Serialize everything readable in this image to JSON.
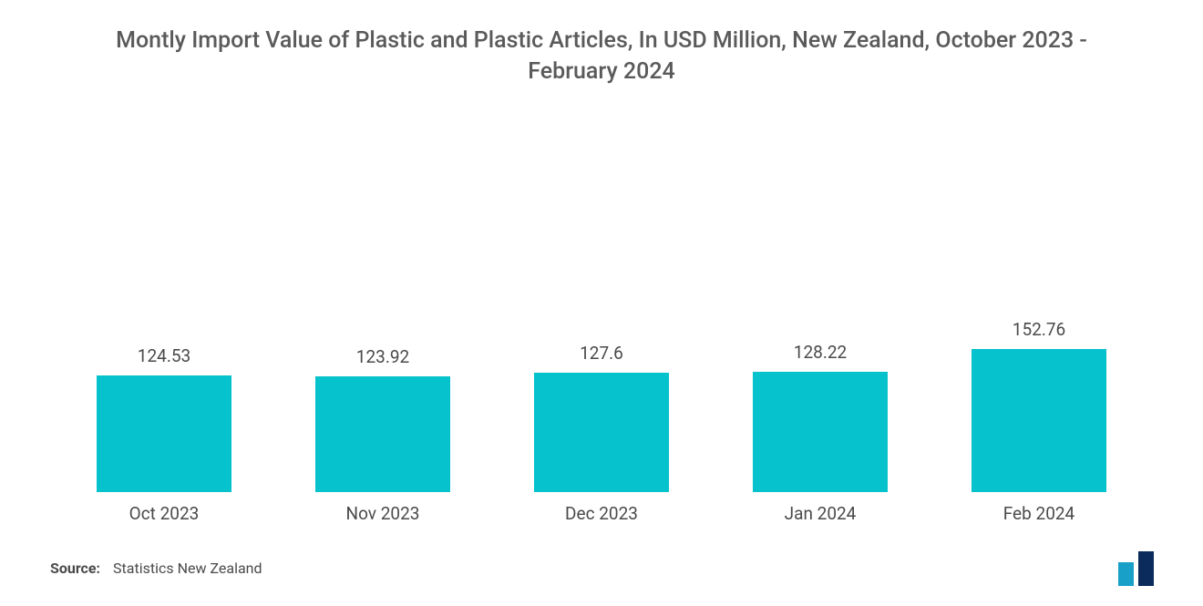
{
  "chart": {
    "type": "bar",
    "title": "Montly Import Value of Plastic and Plastic Articles, In USD Million, New Zealand, October 2023 - February 2024",
    "title_color": "#5a5a5a",
    "title_fontsize": 25,
    "background_color": "#ffffff",
    "bar_color": "#06c2cc",
    "label_color": "#4a4a4a",
    "value_fontsize": 19,
    "category_fontsize": 19,
    "y_max": 380,
    "bar_width_ratio": 0.62,
    "data": [
      {
        "category": "Oct 2023",
        "value": 124.53,
        "label": "124.53"
      },
      {
        "category": "Nov 2023",
        "value": 123.92,
        "label": "123.92"
      },
      {
        "category": "Dec 2023",
        "value": 127.6,
        "label": "127.6"
      },
      {
        "category": "Jan 2024",
        "value": 128.22,
        "label": "128.22"
      },
      {
        "category": "Feb 2024",
        "value": 152.76,
        "label": "152.76"
      }
    ]
  },
  "footer": {
    "source_label": "Source:",
    "source_text": "Statistics New Zealand"
  },
  "logo": {
    "bar1_color": "#18a0c9",
    "bar2_color": "#0a2b5c"
  }
}
